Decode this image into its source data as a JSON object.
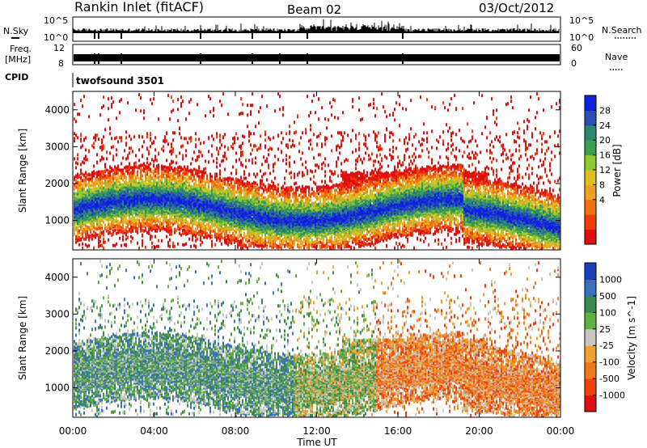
{
  "header": {
    "station": "Rankin Inlet (fitACF)",
    "beam": "Beam 02",
    "date": "03/Oct/2012"
  },
  "top_panels": {
    "nsky_label": "N.Sky",
    "nsky_ticks": [
      "10^5",
      "10^0"
    ],
    "nsearch_label": "N.Search",
    "nsearch_ticks": [
      "10^5",
      "10^0"
    ],
    "freq_label": "Freq.",
    "freq_unit": "[MHz]",
    "freq_ticks": [
      "12",
      "8"
    ],
    "nave_label": "Nave",
    "nave_ticks": [
      "60",
      "0"
    ],
    "cpid_label": "CPID",
    "cpid_value": "twofsound 3501"
  },
  "chart_data": [
    {
      "type": "heatmap",
      "title": "",
      "quantity": "Power",
      "ylabel": "Slant Range [km]",
      "xlabel": "",
      "ylim": [
        200,
        4500
      ],
      "yticks": [
        "1000",
        "2000",
        "3000",
        "4000"
      ],
      "x_ticks": [
        "00:00",
        "04:00",
        "08:00",
        "12:00",
        "16:00",
        "20:00",
        "00:00"
      ],
      "colorbar": {
        "label": "Power [dB]",
        "ticks": [
          "4",
          "8",
          "12",
          "16",
          "20",
          "24",
          "28"
        ],
        "colors": [
          "#1020e0",
          "#2a50b8",
          "#2a8a70",
          "#3aa050",
          "#90c830",
          "#e0c020",
          "#f0a020",
          "#f07010",
          "#f03a10",
          "#e01010"
        ]
      }
    },
    {
      "type": "heatmap",
      "title": "",
      "quantity": "Velocity",
      "ylabel": "Slant Range [km]",
      "xlabel": "Time UT",
      "ylim": [
        200,
        4500
      ],
      "yticks": [
        "1000",
        "2000",
        "3000",
        "4000"
      ],
      "x_ticks": [
        "00:00",
        "04:00",
        "08:00",
        "12:00",
        "16:00",
        "20:00",
        "00:00"
      ],
      "colorbar": {
        "label": "Velocity [m s^-1]",
        "ticks": [
          "1000",
          "500",
          "100",
          "25",
          "-25",
          "-100",
          "-500",
          "-1000"
        ],
        "colors": [
          "#1a40c0",
          "#3a70c0",
          "#3a8a50",
          "#60b040",
          "#c8c8c0",
          "#f0a030",
          "#f07818",
          "#f04010",
          "#e01010"
        ]
      }
    }
  ],
  "colors": {
    "panel_bg": "#ffffff",
    "axis": "#000000"
  }
}
